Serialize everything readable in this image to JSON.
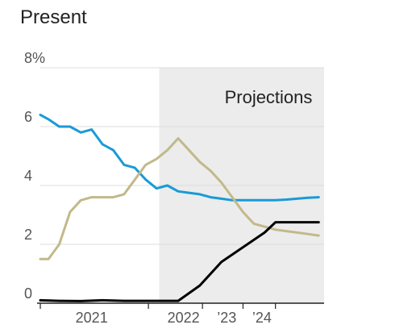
{
  "title": "Present",
  "chart_data": {
    "type": "line",
    "title": "Present",
    "ylim": [
      0,
      8
    ],
    "xlim": [
      2020.0,
      2025.25
    ],
    "y_ticks": [
      {
        "value": 8,
        "label": "8%"
      },
      {
        "value": 6,
        "label": "6"
      },
      {
        "value": 4,
        "label": "4"
      },
      {
        "value": 2,
        "label": "2"
      },
      {
        "value": 0,
        "label": "0"
      }
    ],
    "x_labels": [
      {
        "value": 2020.95,
        "label": "2021"
      },
      {
        "value": 2022.65,
        "label": "2022"
      },
      {
        "value": 2023.45,
        "label": "’23"
      },
      {
        "value": 2024.1,
        "label": "’24"
      }
    ],
    "x_ticks": [
      2020.0,
      2022.0,
      2023.0,
      2023.75,
      2024.35
    ],
    "projection_region": {
      "x_start": 2022.2,
      "x_end": 2025.25,
      "label": "Projections"
    },
    "grid": true,
    "series": [
      {
        "color": "#1a9ad7",
        "x": [
          2020.0,
          2020.15,
          2020.35,
          2020.55,
          2020.75,
          2020.95,
          2021.15,
          2021.35,
          2021.55,
          2021.75,
          2021.95,
          2022.15,
          2022.35,
          2022.55,
          2022.75,
          2022.95,
          2023.15,
          2023.35,
          2023.55,
          2023.75,
          2023.95,
          2024.15,
          2024.35,
          2024.55,
          2024.75,
          2024.95,
          2025.15
        ],
        "values": [
          6.4,
          6.25,
          6.0,
          6.0,
          5.8,
          5.9,
          5.4,
          5.2,
          4.7,
          4.6,
          4.2,
          3.9,
          4.0,
          3.8,
          3.75,
          3.7,
          3.6,
          3.55,
          3.5,
          3.5,
          3.5,
          3.5,
          3.5,
          3.52,
          3.55,
          3.58,
          3.6
        ]
      },
      {
        "color": "#c2b98a",
        "x": [
          2020.0,
          2020.15,
          2020.35,
          2020.55,
          2020.75,
          2020.95,
          2021.15,
          2021.35,
          2021.55,
          2021.75,
          2021.95,
          2022.15,
          2022.35,
          2022.55,
          2022.75,
          2022.95,
          2023.15,
          2023.35,
          2023.55,
          2023.75,
          2023.95,
          2024.15,
          2024.35,
          2024.55,
          2024.75,
          2024.95,
          2025.15
        ],
        "values": [
          1.5,
          1.5,
          2.0,
          3.1,
          3.5,
          3.6,
          3.6,
          3.6,
          3.7,
          4.2,
          4.7,
          4.9,
          5.2,
          5.6,
          5.2,
          4.8,
          4.5,
          4.1,
          3.6,
          3.1,
          2.7,
          2.6,
          2.5,
          2.45,
          2.4,
          2.35,
          2.3
        ]
      },
      {
        "color": "#000000",
        "x": [
          2020.0,
          2020.35,
          2020.75,
          2021.15,
          2021.55,
          2021.95,
          2022.35,
          2022.55,
          2022.95,
          2023.35,
          2023.75,
          2024.15,
          2024.35,
          2024.75,
          2025.15
        ],
        "values": [
          0.1,
          0.08,
          0.07,
          0.1,
          0.08,
          0.08,
          0.08,
          0.08,
          0.6,
          1.4,
          1.9,
          2.4,
          2.75,
          2.75,
          2.75
        ]
      }
    ]
  }
}
